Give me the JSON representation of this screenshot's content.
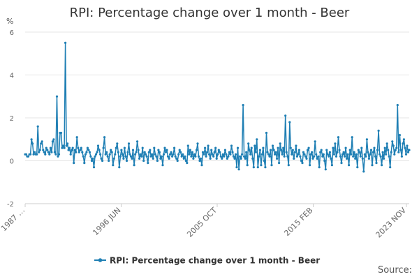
{
  "chart_data": {
    "type": "line",
    "title": "RPI: Percentage change over 1 month - Beer",
    "y_unit": "%",
    "ylim": [
      -2,
      6
    ],
    "y_ticks": [
      -2,
      0,
      2,
      4,
      6
    ],
    "x_tick_labels": [
      "1987 …",
      "1996 JUN",
      "2005 OCT",
      "2015 FEB",
      "2023 NOV"
    ],
    "grid": "horizontal",
    "legend_position": "bottom-center",
    "color": "#1f7fb4",
    "source": "Source:",
    "series": [
      {
        "name": "RPI: Percentage change over 1 month - Beer",
        "values": [
          0.3,
          0.3,
          0.2,
          0.2,
          0.3,
          0.3,
          1.0,
          0.8,
          0.3,
          0.4,
          0.3,
          0.3,
          1.6,
          0.4,
          0.5,
          0.8,
          0.9,
          0.5,
          0.4,
          0.3,
          0.6,
          0.5,
          0.4,
          0.3,
          0.6,
          0.4,
          0.9,
          1.0,
          0.4,
          0.3,
          3.0,
          0.2,
          0.3,
          1.3,
          1.3,
          0.6,
          0.7,
          0.6,
          5.5,
          0.7,
          0.8,
          0.5,
          0.6,
          0.3,
          0.5,
          0.6,
          -0.1,
          0.5,
          0.4,
          1.1,
          0.6,
          0.4,
          0.5,
          0.6,
          0.4,
          0.2,
          -0.1,
          0.3,
          0.4,
          0.6,
          0.5,
          0.4,
          0.2,
          0.0,
          0.1,
          -0.3,
          0.2,
          0.3,
          0.4,
          0.7,
          0.5,
          0.3,
          0.1,
          0.0,
          0.6,
          1.1,
          0.3,
          0.4,
          0.2,
          0.0,
          0.3,
          0.5,
          0.4,
          -0.2,
          0.1,
          0.3,
          0.6,
          0.8,
          0.4,
          -0.3,
          0.2,
          0.5,
          0.3,
          0.1,
          0.6,
          0.2,
          0.0,
          0.4,
          0.8,
          0.3,
          0.2,
          0.1,
          0.5,
          -0.2,
          0.3,
          0.4,
          0.9,
          0.5,
          0.1,
          0.3,
          0.2,
          0.6,
          0.0,
          0.4,
          0.3,
          0.2,
          -0.1,
          0.4,
          0.5,
          0.2,
          0.3,
          0.1,
          0.6,
          0.3,
          0.2,
          0.0,
          0.5,
          0.4,
          0.1,
          0.2,
          -0.2,
          0.3,
          0.6,
          0.4,
          0.5,
          0.2,
          0.1,
          0.3,
          0.4,
          0.2,
          0.3,
          0.6,
          0.2,
          0.1,
          0.0,
          0.3,
          0.5,
          0.4,
          0.2,
          0.3,
          0.1,
          0.2,
          0.0,
          -0.1,
          0.7,
          0.3,
          0.5,
          0.2,
          0.4,
          0.1,
          0.3,
          0.2,
          0.5,
          0.8,
          0.2,
          0.0,
          0.1,
          -0.2,
          0.4,
          0.3,
          0.6,
          0.2,
          0.4,
          0.7,
          0.3,
          0.1,
          0.5,
          0.3,
          0.2,
          0.4,
          0.6,
          0.1,
          0.3,
          0.5,
          0.4,
          0.2,
          0.1,
          0.3,
          0.2,
          0.5,
          0.3,
          0.1,
          0.2,
          0.4,
          0.3,
          0.7,
          0.4,
          0.2,
          0.1,
          0.3,
          -0.3,
          0.6,
          -0.4,
          0.2,
          0.1,
          0.3,
          2.6,
          0.2,
          0.1,
          0.4,
          -0.2,
          0.8,
          0.5,
          0.3,
          0.6,
          0.1,
          -0.3,
          0.7,
          0.4,
          1.0,
          -0.3,
          0.2,
          0.5,
          -0.2,
          0.3,
          0.6,
          0.0,
          -0.3,
          1.3,
          0.4,
          0.3,
          0.2,
          0.5,
          -0.2,
          0.7,
          0.5,
          0.3,
          0.4,
          0.1,
          0.6,
          -0.1,
          0.8,
          0.5,
          0.3,
          0.6,
          0.2,
          2.1,
          0.4,
          0.2,
          -0.2,
          1.8,
          0.6,
          0.3,
          0.5,
          0.1,
          0.4,
          0.7,
          0.2,
          0.3,
          0.5,
          0.2,
          0.0,
          -0.1,
          0.4,
          0.3,
          0.2,
          0.1,
          0.5,
          0.6,
          -0.2,
          0.3,
          0.4,
          0.1,
          0.2,
          0.9,
          0.3,
          0.1,
          0.2,
          -0.3,
          0.4,
          0.5,
          0.2,
          0.3,
          0.0,
          -0.4,
          0.5,
          0.3,
          0.2,
          0.4,
          0.1,
          -0.2,
          0.6,
          0.3,
          0.8,
          0.2,
          0.4,
          1.1,
          0.5,
          0.2,
          -0.1,
          0.3,
          0.4,
          0.2,
          0.6,
          0.1,
          0.3,
          -0.2,
          0.5,
          0.3,
          1.1,
          0.2,
          0.4,
          0.1,
          0.3,
          -0.3,
          0.5,
          0.4,
          0.2,
          0.6,
          0.1,
          -0.5,
          0.3,
          0.2,
          1.0,
          0.4,
          0.1,
          0.3,
          0.5,
          -0.2,
          0.4,
          0.6,
          0.2,
          -0.1,
          0.5,
          1.4,
          0.3,
          0.2,
          -0.2,
          0.4,
          0.1,
          0.6,
          0.3,
          0.8,
          0.5,
          0.2,
          -0.3,
          0.4,
          0.9,
          0.7,
          0.3,
          0.5,
          0.6,
          2.6,
          0.4,
          1.2,
          0.5,
          0.2,
          0.8,
          1.0,
          0.6,
          0.3,
          0.7,
          0.4,
          0.5
        ]
      }
    ]
  }
}
